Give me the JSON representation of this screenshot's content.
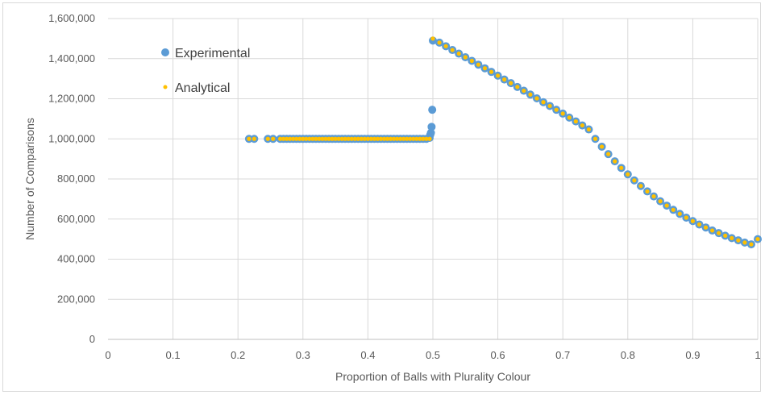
{
  "chart_data": {
    "type": "scatter",
    "title": "",
    "xlabel": "Proportion of Balls with Plurality Colour",
    "ylabel": "Number of Comparisons",
    "xlim": [
      0,
      1
    ],
    "ylim": [
      0,
      1600000
    ],
    "x_ticks": [
      "0",
      "0.1",
      "0.2",
      "0.3",
      "0.4",
      "0.5",
      "0.6",
      "0.7",
      "0.8",
      "0.9",
      "1"
    ],
    "y_ticks": [
      "0",
      "200,000",
      "400,000",
      "600,000",
      "800,000",
      "1,000,000",
      "1,200,000",
      "1,400,000",
      "1,600,000"
    ],
    "grid": true,
    "legend_position": "upper-left inside plot",
    "series": [
      {
        "name": "Experimental",
        "color": "#5b9bd5",
        "marker": "circle-large",
        "points": [
          [
            0.217,
            1000000
          ],
          [
            0.225,
            1000000
          ],
          [
            0.246,
            1000000
          ],
          [
            0.254,
            1000000
          ],
          [
            0.265,
            1000000
          ],
          [
            0.27,
            1000000
          ],
          [
            0.275,
            1000000
          ],
          [
            0.28,
            1000000
          ],
          [
            0.285,
            1000000
          ],
          [
            0.29,
            1000000
          ],
          [
            0.295,
            1000000
          ],
          [
            0.3,
            1000000
          ],
          [
            0.305,
            1000000
          ],
          [
            0.31,
            1000000
          ],
          [
            0.315,
            1000000
          ],
          [
            0.32,
            1000000
          ],
          [
            0.325,
            1000000
          ],
          [
            0.33,
            1000000
          ],
          [
            0.335,
            1000000
          ],
          [
            0.34,
            1000000
          ],
          [
            0.345,
            1000000
          ],
          [
            0.35,
            1000000
          ],
          [
            0.355,
            1000000
          ],
          [
            0.36,
            1000000
          ],
          [
            0.365,
            1000000
          ],
          [
            0.37,
            1000000
          ],
          [
            0.375,
            1000000
          ],
          [
            0.38,
            1000000
          ],
          [
            0.385,
            1000000
          ],
          [
            0.39,
            1000000
          ],
          [
            0.395,
            1000000
          ],
          [
            0.4,
            1000000
          ],
          [
            0.405,
            1000000
          ],
          [
            0.41,
            1000000
          ],
          [
            0.415,
            1000000
          ],
          [
            0.42,
            1000000
          ],
          [
            0.425,
            1000000
          ],
          [
            0.43,
            1000000
          ],
          [
            0.435,
            1000000
          ],
          [
            0.44,
            1000000
          ],
          [
            0.445,
            1000000
          ],
          [
            0.45,
            1000000
          ],
          [
            0.455,
            1000000
          ],
          [
            0.46,
            1000000
          ],
          [
            0.465,
            1000000
          ],
          [
            0.47,
            1000000
          ],
          [
            0.475,
            1000000
          ],
          [
            0.48,
            1000000
          ],
          [
            0.485,
            1000000
          ],
          [
            0.49,
            1000000
          ],
          [
            0.495,
            1005000
          ],
          [
            0.496,
            1020000
          ],
          [
            0.497,
            1030000
          ],
          [
            0.498,
            1060000
          ],
          [
            0.499,
            1145000
          ],
          [
            0.5,
            1490000
          ],
          [
            0.51,
            1480000
          ],
          [
            0.52,
            1462000
          ],
          [
            0.53,
            1443000
          ],
          [
            0.54,
            1425000
          ],
          [
            0.55,
            1407000
          ],
          [
            0.56,
            1389000
          ],
          [
            0.57,
            1370000
          ],
          [
            0.58,
            1352000
          ],
          [
            0.59,
            1334000
          ],
          [
            0.6,
            1315000
          ],
          [
            0.61,
            1296000
          ],
          [
            0.62,
            1278000
          ],
          [
            0.63,
            1259000
          ],
          [
            0.64,
            1240000
          ],
          [
            0.65,
            1221000
          ],
          [
            0.66,
            1202000
          ],
          [
            0.67,
            1183000
          ],
          [
            0.68,
            1164000
          ],
          [
            0.69,
            1145000
          ],
          [
            0.7,
            1126000
          ],
          [
            0.71,
            1106000
          ],
          [
            0.72,
            1087000
          ],
          [
            0.73,
            1067000
          ],
          [
            0.74,
            1047000
          ],
          [
            0.75,
            1000000
          ],
          [
            0.76,
            961000
          ],
          [
            0.77,
            924000
          ],
          [
            0.78,
            888000
          ],
          [
            0.79,
            855000
          ],
          [
            0.8,
            823000
          ],
          [
            0.81,
            793000
          ],
          [
            0.82,
            765000
          ],
          [
            0.83,
            738000
          ],
          [
            0.84,
            713000
          ],
          [
            0.85,
            689000
          ],
          [
            0.86,
            667000
          ],
          [
            0.87,
            646000
          ],
          [
            0.88,
            626000
          ],
          [
            0.89,
            607000
          ],
          [
            0.9,
            590000
          ],
          [
            0.91,
            573000
          ],
          [
            0.92,
            558000
          ],
          [
            0.93,
            543000
          ],
          [
            0.94,
            530000
          ],
          [
            0.95,
            517000
          ],
          [
            0.96,
            505000
          ],
          [
            0.97,
            494000
          ],
          [
            0.98,
            483000
          ],
          [
            0.99,
            474000
          ],
          [
            1.0,
            500000
          ]
        ]
      },
      {
        "name": "Analytical",
        "color": "#ffc000",
        "marker": "circle-small",
        "points": [
          [
            0.217,
            1000000
          ],
          [
            0.225,
            1000000
          ],
          [
            0.246,
            1000000
          ],
          [
            0.254,
            1000000
          ],
          [
            0.265,
            1000000
          ],
          [
            0.27,
            1000000
          ],
          [
            0.275,
            1000000
          ],
          [
            0.28,
            1000000
          ],
          [
            0.285,
            1000000
          ],
          [
            0.29,
            1000000
          ],
          [
            0.295,
            1000000
          ],
          [
            0.3,
            1000000
          ],
          [
            0.305,
            1000000
          ],
          [
            0.31,
            1000000
          ],
          [
            0.315,
            1000000
          ],
          [
            0.32,
            1000000
          ],
          [
            0.325,
            1000000
          ],
          [
            0.33,
            1000000
          ],
          [
            0.335,
            1000000
          ],
          [
            0.34,
            1000000
          ],
          [
            0.345,
            1000000
          ],
          [
            0.35,
            1000000
          ],
          [
            0.355,
            1000000
          ],
          [
            0.36,
            1000000
          ],
          [
            0.365,
            1000000
          ],
          [
            0.37,
            1000000
          ],
          [
            0.375,
            1000000
          ],
          [
            0.38,
            1000000
          ],
          [
            0.385,
            1000000
          ],
          [
            0.39,
            1000000
          ],
          [
            0.395,
            1000000
          ],
          [
            0.4,
            1000000
          ],
          [
            0.405,
            1000000
          ],
          [
            0.41,
            1000000
          ],
          [
            0.415,
            1000000
          ],
          [
            0.42,
            1000000
          ],
          [
            0.425,
            1000000
          ],
          [
            0.43,
            1000000
          ],
          [
            0.435,
            1000000
          ],
          [
            0.44,
            1000000
          ],
          [
            0.445,
            1000000
          ],
          [
            0.45,
            1000000
          ],
          [
            0.455,
            1000000
          ],
          [
            0.46,
            1000000
          ],
          [
            0.465,
            1000000
          ],
          [
            0.47,
            1000000
          ],
          [
            0.475,
            1000000
          ],
          [
            0.48,
            1000000
          ],
          [
            0.485,
            1000000
          ],
          [
            0.49,
            1000000
          ],
          [
            0.495,
            1000000
          ],
          [
            0.5,
            1500000
          ],
          [
            0.51,
            1480000
          ],
          [
            0.52,
            1462000
          ],
          [
            0.53,
            1443000
          ],
          [
            0.54,
            1425000
          ],
          [
            0.55,
            1407000
          ],
          [
            0.56,
            1389000
          ],
          [
            0.57,
            1370000
          ],
          [
            0.58,
            1352000
          ],
          [
            0.59,
            1334000
          ],
          [
            0.6,
            1315000
          ],
          [
            0.61,
            1296000
          ],
          [
            0.62,
            1278000
          ],
          [
            0.63,
            1259000
          ],
          [
            0.64,
            1240000
          ],
          [
            0.65,
            1221000
          ],
          [
            0.66,
            1202000
          ],
          [
            0.67,
            1183000
          ],
          [
            0.68,
            1164000
          ],
          [
            0.69,
            1145000
          ],
          [
            0.7,
            1126000
          ],
          [
            0.71,
            1106000
          ],
          [
            0.72,
            1087000
          ],
          [
            0.73,
            1067000
          ],
          [
            0.74,
            1047000
          ],
          [
            0.75,
            1000000
          ],
          [
            0.76,
            961000
          ],
          [
            0.77,
            924000
          ],
          [
            0.78,
            888000
          ],
          [
            0.79,
            855000
          ],
          [
            0.8,
            823000
          ],
          [
            0.81,
            793000
          ],
          [
            0.82,
            765000
          ],
          [
            0.83,
            738000
          ],
          [
            0.84,
            713000
          ],
          [
            0.85,
            689000
          ],
          [
            0.86,
            667000
          ],
          [
            0.87,
            646000
          ],
          [
            0.88,
            626000
          ],
          [
            0.89,
            607000
          ],
          [
            0.9,
            590000
          ],
          [
            0.91,
            573000
          ],
          [
            0.92,
            558000
          ],
          [
            0.93,
            543000
          ],
          [
            0.94,
            530000
          ],
          [
            0.95,
            517000
          ],
          [
            0.96,
            505000
          ],
          [
            0.97,
            494000
          ],
          [
            0.98,
            483000
          ],
          [
            0.99,
            474000
          ],
          [
            1.0,
            500000
          ]
        ]
      }
    ]
  }
}
